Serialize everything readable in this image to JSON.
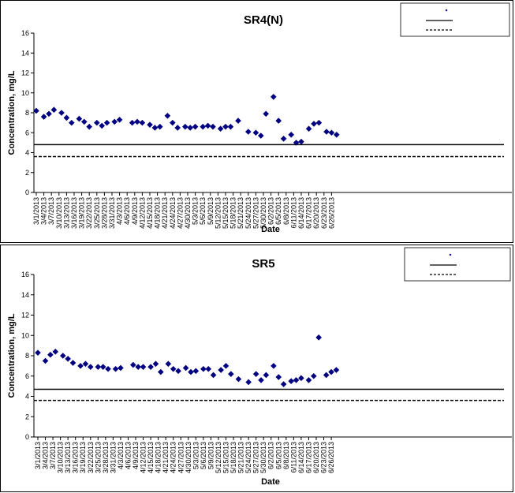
{
  "chart_data": [
    {
      "type": "scatter",
      "title": "SR4(N)",
      "xlabel": "Date",
      "ylabel": "Concentration, mg/L",
      "ylim": [
        0,
        16
      ],
      "yticks": [
        0,
        2,
        4,
        6,
        8,
        10,
        12,
        14,
        16
      ],
      "grid": false,
      "legend_position": "top-right",
      "x_tick_labels": [
        "3/1/2013",
        "3/4/2013",
        "3/7/2013",
        "3/10/2013",
        "3/13/2013",
        "3/16/2013",
        "3/19/2013",
        "3/22/2013",
        "3/25/2013",
        "3/28/2013",
        "3/31/2013",
        "4/3/2013",
        "4/6/2013",
        "4/9/2013",
        "4/12/2013",
        "4/15/2013",
        "4/18/2013",
        "4/21/2013",
        "4/24/2013",
        "4/27/2013",
        "4/30/2013",
        "5/3/2013",
        "5/6/2013",
        "5/9/2013",
        "5/12/2013",
        "5/15/2013",
        "5/18/2013",
        "5/21/2013",
        "5/24/2013",
        "5/27/2013",
        "5/30/2013",
        "6/2/2013",
        "6/5/2013",
        "6/8/2013",
        "6/11/2013",
        "6/14/2013",
        "6/17/2013",
        "6/20/2013",
        "6/23/2013",
        "6/26/2013"
      ],
      "series": [
        {
          "name": "",
          "marker": "diamond",
          "color": "#000080",
          "x": [
            "3/1/2013",
            "3/4/2013",
            "3/6/2013",
            "3/8/2013",
            "3/11/2013",
            "3/13/2013",
            "3/15/2013",
            "3/18/2013",
            "3/20/2013",
            "3/22/2013",
            "3/25/2013",
            "3/27/2013",
            "3/29/2013",
            "4/1/2013",
            "4/3/2013",
            "4/8/2013",
            "4/10/2013",
            "4/12/2013",
            "4/15/2013",
            "4/17/2013",
            "4/19/2013",
            "4/22/2013",
            "4/24/2013",
            "4/26/2013",
            "4/29/2013",
            "5/1/2013",
            "5/3/2013",
            "5/6/2013",
            "5/8/2013",
            "5/10/2013",
            "5/13/2013",
            "5/15/2013",
            "5/17/2013",
            "5/20/2013",
            "5/24/2013",
            "5/27/2013",
            "5/29/2013",
            "5/31/2013",
            "6/3/2013",
            "6/5/2013",
            "6/7/2013",
            "6/10/2013",
            "6/12/2013",
            "6/14/2013",
            "6/17/2013",
            "6/19/2013",
            "6/21/2013",
            "6/24/2013",
            "6/26/2013",
            "6/28/2013"
          ],
          "y": [
            8.2,
            7.6,
            7.9,
            8.3,
            8.0,
            7.5,
            7.0,
            7.4,
            7.1,
            6.6,
            7.0,
            6.7,
            7.0,
            7.1,
            7.3,
            7.0,
            7.1,
            7.0,
            6.8,
            6.5,
            6.6,
            7.7,
            7.0,
            6.5,
            6.6,
            6.5,
            6.6,
            6.6,
            6.7,
            6.6,
            6.4,
            6.6,
            6.6,
            7.2,
            6.1,
            6.0,
            5.7,
            7.9,
            9.6,
            7.2,
            5.4,
            5.8,
            5.0,
            5.1,
            6.4,
            6.9,
            7.0,
            6.1,
            6.0,
            5.8
          ]
        },
        {
          "name": "",
          "style": "solid-line",
          "value": 4.8
        },
        {
          "name": "",
          "style": "dashed-line",
          "value": 3.6
        }
      ]
    },
    {
      "type": "scatter",
      "title": "SR5",
      "xlabel": "Date",
      "ylabel": "Concentration, mg/L",
      "ylim": [
        0,
        16
      ],
      "yticks": [
        0,
        2,
        4,
        6,
        8,
        10,
        12,
        14,
        16
      ],
      "grid": false,
      "legend_position": "top-right",
      "x_tick_labels": [
        "3/1/2013",
        "3/4/2013",
        "3/7/2013",
        "3/10/2013",
        "3/13/2013",
        "3/16/2013",
        "3/19/2013",
        "3/22/2013",
        "3/25/2013",
        "3/28/2013",
        "3/31/2013",
        "4/3/2013",
        "4/6/2013",
        "4/9/2013",
        "4/12/2013",
        "4/15/2013",
        "4/18/2013",
        "4/21/2013",
        "4/24/2013",
        "4/27/2013",
        "4/30/2013",
        "5/3/2013",
        "5/6/2013",
        "5/9/2013",
        "5/12/2013",
        "5/15/2013",
        "5/18/2013",
        "5/21/2013",
        "5/24/2013",
        "5/27/2013",
        "5/30/2013",
        "6/2/2013",
        "6/5/2013",
        "6/8/2013",
        "6/11/2013",
        "6/14/2013",
        "6/17/2013",
        "6/20/2013",
        "6/23/2013",
        "6/26/2013"
      ],
      "series": [
        {
          "name": "",
          "marker": "diamond",
          "color": "#000080",
          "x": [
            "3/1/2013",
            "3/4/2013",
            "3/6/2013",
            "3/8/2013",
            "3/11/2013",
            "3/13/2013",
            "3/15/2013",
            "3/18/2013",
            "3/20/2013",
            "3/22/2013",
            "3/25/2013",
            "3/27/2013",
            "3/29/2013",
            "4/1/2013",
            "4/3/2013",
            "4/8/2013",
            "4/10/2013",
            "4/12/2013",
            "4/15/2013",
            "4/17/2013",
            "4/19/2013",
            "4/22/2013",
            "4/24/2013",
            "4/26/2013",
            "4/29/2013",
            "5/1/2013",
            "5/3/2013",
            "5/6/2013",
            "5/8/2013",
            "5/10/2013",
            "5/13/2013",
            "5/15/2013",
            "5/17/2013",
            "5/20/2013",
            "5/24/2013",
            "5/27/2013",
            "5/29/2013",
            "5/31/2013",
            "6/3/2013",
            "6/5/2013",
            "6/7/2013",
            "6/10/2013",
            "6/12/2013",
            "6/14/2013",
            "6/17/2013",
            "6/19/2013",
            "6/21/2013",
            "6/24/2013",
            "6/26/2013",
            "6/28/2013"
          ],
          "y": [
            8.3,
            7.5,
            8.1,
            8.4,
            8.0,
            7.7,
            7.3,
            7.0,
            7.2,
            6.9,
            6.9,
            6.9,
            6.7,
            6.7,
            6.8,
            7.1,
            6.9,
            6.9,
            6.9,
            7.2,
            6.4,
            7.2,
            6.7,
            6.5,
            6.8,
            6.4,
            6.5,
            6.7,
            6.7,
            6.1,
            6.6,
            7.0,
            6.2,
            5.7,
            5.4,
            6.2,
            5.6,
            6.1,
            7.0,
            5.9,
            5.2,
            5.5,
            5.6,
            5.8,
            5.6,
            6.0,
            9.8,
            6.1,
            6.4,
            6.6
          ]
        },
        {
          "name": "",
          "style": "solid-line",
          "value": 4.7
        },
        {
          "name": "",
          "style": "dashed-line",
          "value": 3.6
        }
      ]
    }
  ]
}
